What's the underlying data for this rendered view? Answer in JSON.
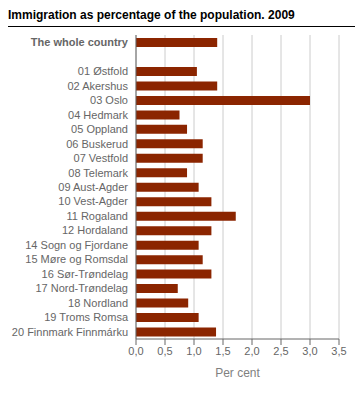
{
  "chart_data": {
    "type": "bar",
    "orientation": "horizontal",
    "title": "Immigration as percentage of the population. 2009",
    "categories": [
      "The whole country",
      null,
      "01 Østfold",
      "02 Akershus",
      "03 Oslo",
      "04 Hedmark",
      "05 Oppland",
      "06 Buskerud",
      "07 Vestfold",
      "08 Telemark",
      "09 Aust-Agder",
      "10 Vest-Agder",
      "11 Rogaland",
      "12 Hordaland",
      "14 Sogn og Fjordane",
      "15 Møre og Romsdal",
      "16 Sør-Trøndelag",
      "17 Nord-Trøndelag",
      "18 Nordland",
      "19 Troms Romsa",
      "20 Finnmark Finnmárku"
    ],
    "values": [
      1.4,
      0,
      1.05,
      1.4,
      3.0,
      0.75,
      0.88,
      1.15,
      1.15,
      0.88,
      1.08,
      1.3,
      1.72,
      1.3,
      1.08,
      1.15,
      1.3,
      0.72,
      0.9,
      1.08,
      1.38
    ],
    "color": "#8B2500",
    "xlabel": "Per cent",
    "xlim": [
      0,
      3.5
    ],
    "xticks": [
      {
        "value": 0.0,
        "label": "0,0"
      },
      {
        "value": 0.5,
        "label": "0,5"
      },
      {
        "value": 1.0,
        "label": "1,0"
      },
      {
        "value": 1.5,
        "label": "1,5"
      },
      {
        "value": 2.0,
        "label": "2,0"
      },
      {
        "value": 2.5,
        "label": "2,5"
      },
      {
        "value": 3.0,
        "label": "3,0"
      },
      {
        "value": 3.5,
        "label": "3,5"
      }
    ],
    "grid": true
  }
}
